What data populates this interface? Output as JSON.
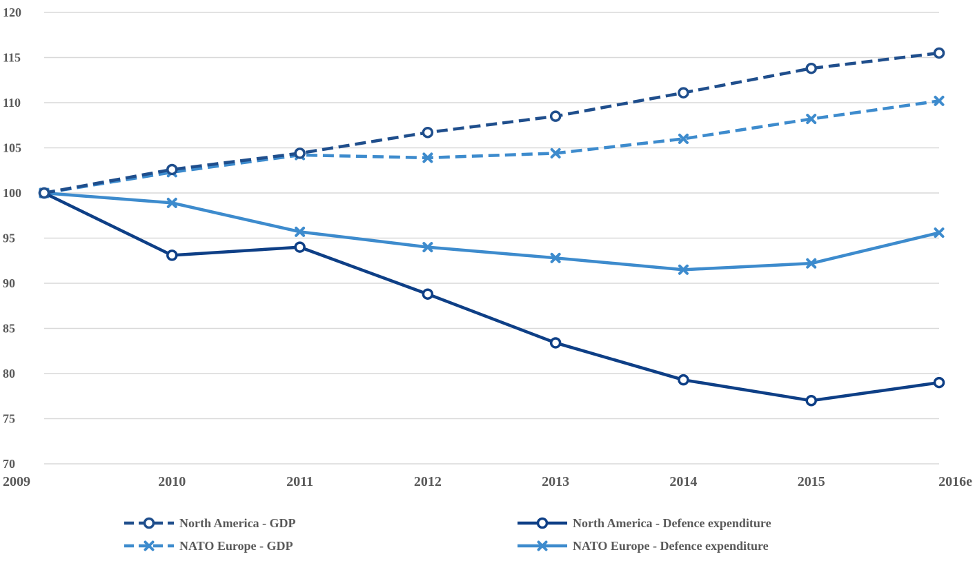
{
  "chart_data": {
    "type": "line",
    "title": "",
    "xlabel": "",
    "ylabel": "",
    "categories": [
      "2009",
      "2010",
      "2011",
      "2012",
      "2013",
      "2014",
      "2015",
      "2016e"
    ],
    "ylim": [
      70,
      120
    ],
    "yticks": [
      70,
      75,
      80,
      85,
      90,
      95,
      100,
      105,
      110,
      115,
      120
    ],
    "grid": "horizontal",
    "legend_position": "bottom",
    "series": [
      {
        "name": "North America - GDP",
        "color": "#1F4E8C",
        "line_style": "dashed",
        "marker": "circle",
        "values": [
          100,
          102.6,
          104.4,
          106.7,
          108.5,
          111.1,
          113.8,
          115.5
        ]
      },
      {
        "name": "North America - Defence expenditure",
        "color": "#0E3F86",
        "line_style": "solid",
        "marker": "circle",
        "values": [
          100,
          93.1,
          94.0,
          88.8,
          83.4,
          79.3,
          77.0,
          79.0
        ]
      },
      {
        "name": "NATO Europe - GDP",
        "color": "#3D8BCD",
        "line_style": "dashed",
        "marker": "x",
        "values": [
          100,
          102.3,
          104.2,
          103.9,
          104.4,
          106.0,
          108.2,
          110.2
        ]
      },
      {
        "name": "NATO Europe - Defence expenditure",
        "color": "#3D8BCD",
        "line_style": "solid",
        "marker": "x",
        "values": [
          100,
          98.9,
          95.7,
          94.0,
          92.8,
          91.5,
          92.2,
          95.6
        ]
      }
    ]
  }
}
